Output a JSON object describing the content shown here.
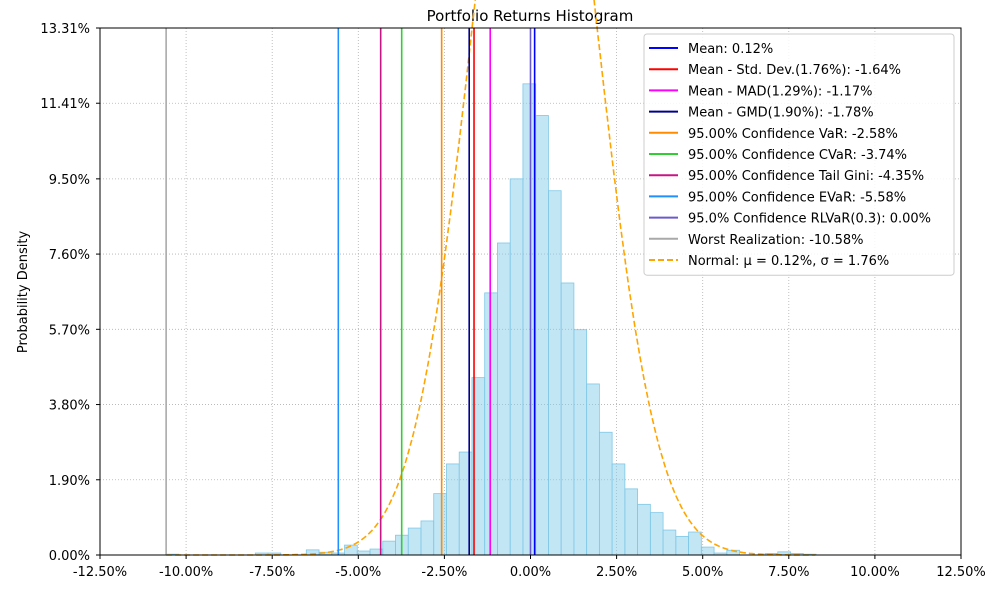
{
  "chart_data": {
    "type": "histogram",
    "title": "Portfolio Returns Histogram",
    "xlabel": "",
    "ylabel": "Probability Density",
    "xlim": [
      -12.5,
      12.5
    ],
    "ylim": [
      0,
      13.31
    ],
    "grid": true,
    "legend_position": "top-right",
    "x_ticks": [
      -12.5,
      -10,
      -7.5,
      -5,
      -2.5,
      0,
      2.5,
      5,
      7.5,
      10,
      12.5
    ],
    "x_tick_labels": [
      "-12.50%",
      "-10.00%",
      "-7.50%",
      "-5.00%",
      "-2.50%",
      "0.00%",
      "2.50%",
      "5.00%",
      "7.50%",
      "10.00%",
      "12.50%"
    ],
    "y_ticks": [
      0,
      1.9,
      3.8,
      5.7,
      7.6,
      9.5,
      11.41,
      13.31
    ],
    "y_tick_labels": [
      "0.00%",
      "1.90%",
      "3.80%",
      "5.70%",
      "7.60%",
      "9.50%",
      "11.41%",
      "13.31%"
    ],
    "histogram": {
      "color": "#87CEEB",
      "edge_color": "#7fc8e6",
      "bin_edges": [
        -10.58,
        -10.21,
        -9.84,
        -9.47,
        -9.1,
        -8.73,
        -8.36,
        -7.99,
        -7.62,
        -7.25,
        -6.88,
        -6.51,
        -6.14,
        -5.77,
        -5.4,
        -5.03,
        -4.66,
        -4.29,
        -3.92,
        -3.55,
        -3.18,
        -2.81,
        -2.44,
        -2.07,
        -1.7,
        -1.33,
        -0.96,
        -0.59,
        -0.22,
        0.15,
        0.52,
        0.89,
        1.26,
        1.63,
        2.0,
        2.37,
        2.74,
        3.11,
        3.48,
        3.85,
        4.22,
        4.59,
        4.96,
        5.33,
        5.7,
        6.07,
        6.44,
        6.81,
        7.18,
        7.55,
        7.92,
        8.29
      ],
      "densities": [
        0.02,
        0,
        0,
        0,
        0,
        0,
        0,
        0.05,
        0.05,
        0,
        0,
        0.13,
        0.07,
        0.05,
        0.25,
        0.1,
        0.15,
        0.35,
        0.5,
        0.68,
        0.86,
        1.55,
        2.3,
        2.6,
        4.48,
        6.62,
        7.88,
        9.5,
        11.9,
        11.1,
        9.2,
        6.87,
        5.69,
        4.32,
        3.1,
        2.3,
        1.67,
        1.28,
        1.07,
        0.63,
        0.47,
        0.58,
        0.2,
        0.05,
        0.12,
        0,
        0,
        0.04,
        0.08,
        0.04,
        0.02
      ]
    },
    "normal_fit": {
      "mu": 0.12,
      "sigma": 1.76,
      "color": "#FFA500",
      "style": "dashed"
    },
    "reference_lines": [
      {
        "x": 0.12,
        "color": "#0000FF",
        "label": "Mean: 0.12%"
      },
      {
        "x": -1.64,
        "color": "#FF0000",
        "label": "Mean - Std. Dev.(1.76%): -1.64%"
      },
      {
        "x": -1.17,
        "color": "#FF00FF",
        "label": "Mean - MAD(1.29%): -1.17%"
      },
      {
        "x": -1.78,
        "color": "#00008B",
        "label": "Mean - GMD(1.90%): -1.78%"
      },
      {
        "x": -2.58,
        "color": "#FF8C00",
        "label": "95.00% Confidence VaR: -2.58%"
      },
      {
        "x": -3.74,
        "color": "#32CD32",
        "label": "95.00% Confidence CVaR: -3.74%"
      },
      {
        "x": -4.35,
        "color": "#C71585",
        "label": "95.00% Confidence Tail Gini: -4.35%"
      },
      {
        "x": -5.58,
        "color": "#1E90FF",
        "label": "95.00% Confidence EVaR: -5.58%"
      },
      {
        "x": 0.0,
        "color": "#6A5ACD",
        "label": "95.0% Confidence RLVaR(0.3): 0.00%"
      },
      {
        "x": -10.58,
        "color": "#A9A9A9",
        "label": "Worst Realization: -10.58%"
      }
    ],
    "normal_legend_label": "Normal: μ = 0.12%, σ = 1.76%"
  }
}
